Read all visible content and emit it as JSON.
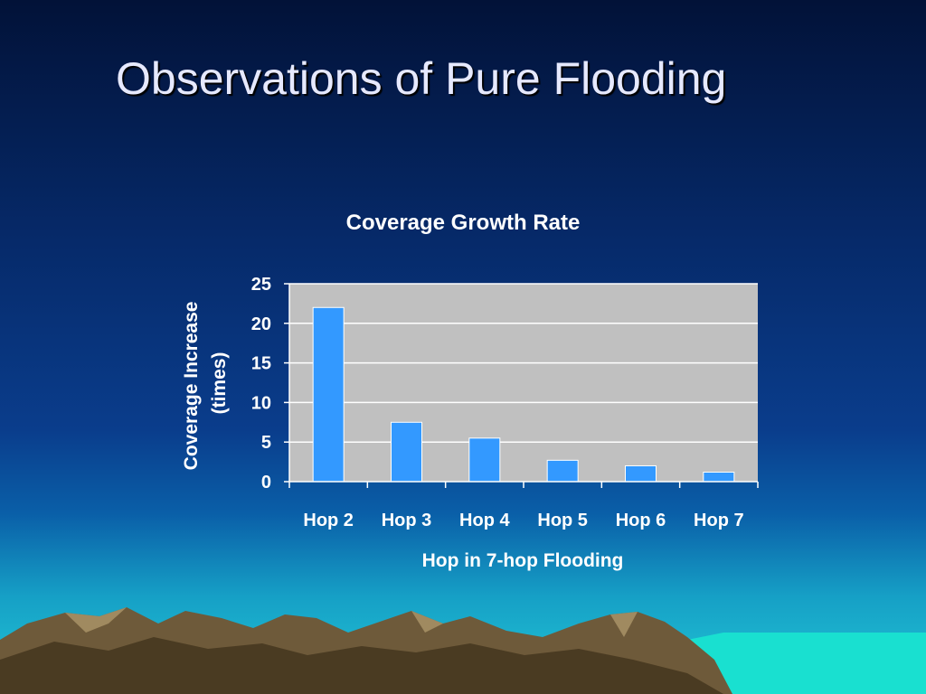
{
  "slide": {
    "title": "Observations of Pure Flooding"
  },
  "chart_data": {
    "type": "bar",
    "title": "Coverage Growth Rate",
    "xlabel": "Hop in 7-hop Flooding",
    "ylabel_lines": [
      "Coverage Increase",
      "(times)"
    ],
    "categories": [
      "Hop 2",
      "Hop 3",
      "Hop 4",
      "Hop 5",
      "Hop 6",
      "Hop 7"
    ],
    "values": [
      22,
      7.5,
      5.5,
      2.7,
      2,
      1.2
    ],
    "ylim": [
      0,
      25
    ],
    "yticks": [
      0,
      5,
      10,
      15,
      20,
      25
    ],
    "grid": true,
    "legend": "none",
    "colors": {
      "bar": "#3399ff",
      "bar_stroke": "#ffffff",
      "plot_bg": "#c0c0c0",
      "grid": "#ffffff"
    }
  }
}
